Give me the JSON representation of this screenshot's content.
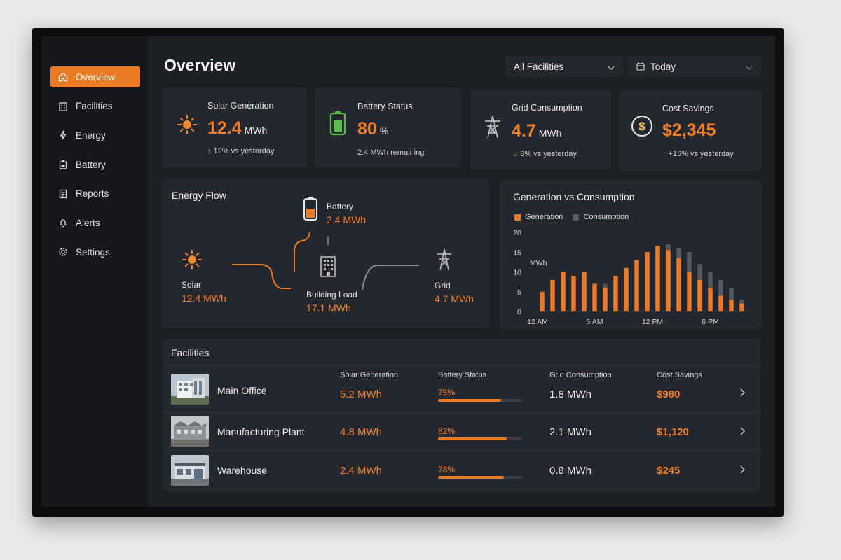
{
  "sidebar": {
    "items": [
      {
        "label": "Overview",
        "icon": "home-icon",
        "active": true
      },
      {
        "label": "Facilities",
        "icon": "building-icon"
      },
      {
        "label": "Energy",
        "icon": "bolt-icon"
      },
      {
        "label": "Battery",
        "icon": "battery-icon"
      },
      {
        "label": "Reports",
        "icon": "report-icon"
      },
      {
        "label": "Alerts",
        "icon": "bell-icon"
      },
      {
        "label": "Settings",
        "icon": "gear-icon"
      }
    ]
  },
  "header": {
    "title": "Overview",
    "facility_select": "All Facilities",
    "date_select": "Today"
  },
  "stats": [
    {
      "label": "Solar Generation",
      "value": "12.4",
      "unit": "MWh",
      "change": "12% vs yesterday",
      "icon": "sun-icon"
    },
    {
      "label": "Battery Status",
      "value": "80",
      "unit": "%",
      "change": "2.4 MWh remaining",
      "icon": "battery-icon"
    },
    {
      "label": "Grid Consumption",
      "value": "4.7",
      "unit": "MWh",
      "change": "8% vs yesterday",
      "icon": "power-tower-icon"
    },
    {
      "label": "Cost Savings",
      "value": "$2,345",
      "unit": "",
      "change": "+15% vs yesterday",
      "icon": "dollar-icon"
    }
  ],
  "energy_flow": {
    "title": "Energy Flow",
    "solar": {
      "label": "Solar",
      "value": "12.4 MWh"
    },
    "battery": {
      "label": "Battery",
      "value": "2.4 MWh"
    },
    "building": {
      "label": "Building Load",
      "value": "17.1 MWh"
    },
    "grid": {
      "label": "Grid",
      "value": "4.7 MWh"
    }
  },
  "chart_data": {
    "type": "bar",
    "title": "Generation vs Consumption",
    "ylabel": "MWh",
    "ylim": [
      0,
      20
    ],
    "yticks": [
      "0",
      "5",
      "10",
      "15",
      "20"
    ],
    "xticks": [
      "12 AM",
      "6 AM",
      "12 PM",
      "6 PM"
    ],
    "legend": "top-left",
    "series": [
      {
        "name": "Generation",
        "color": "#e8782a",
        "values": [
          5,
          8,
          10,
          9,
          10,
          7,
          6,
          9,
          11,
          13,
          15,
          16.5,
          15.5,
          13.5,
          10,
          8,
          6,
          4,
          3,
          2
        ]
      },
      {
        "name": "Consumption",
        "color": "#55585e",
        "values": [
          4,
          7,
          9,
          8,
          9,
          6,
          7,
          8,
          10,
          12,
          14,
          15,
          17,
          16,
          15,
          12,
          10,
          8,
          6,
          3
        ]
      }
    ]
  },
  "facilities": {
    "title": "Facilities",
    "columns": [
      "Solar Generation",
      "Battery Status",
      "Grid Consumption",
      "Cost Savings"
    ],
    "rows": [
      {
        "name": "Main Office",
        "solar": "5.2 MWh",
        "battery": "75%",
        "battery_level": 0.75,
        "grid": "1.8 MWh",
        "savings": "$980"
      },
      {
        "name": "Manufacturing Plant",
        "solar": "4.8 MWh",
        "battery": "82%",
        "battery_level": 0.82,
        "grid": "2.1 MWh",
        "savings": "$1,120"
      },
      {
        "name": "Warehouse",
        "solar": "2.4 MWh",
        "battery": "78%",
        "battery_level": 0.78,
        "grid": "0.8 MWh",
        "savings": "$245"
      }
    ]
  }
}
